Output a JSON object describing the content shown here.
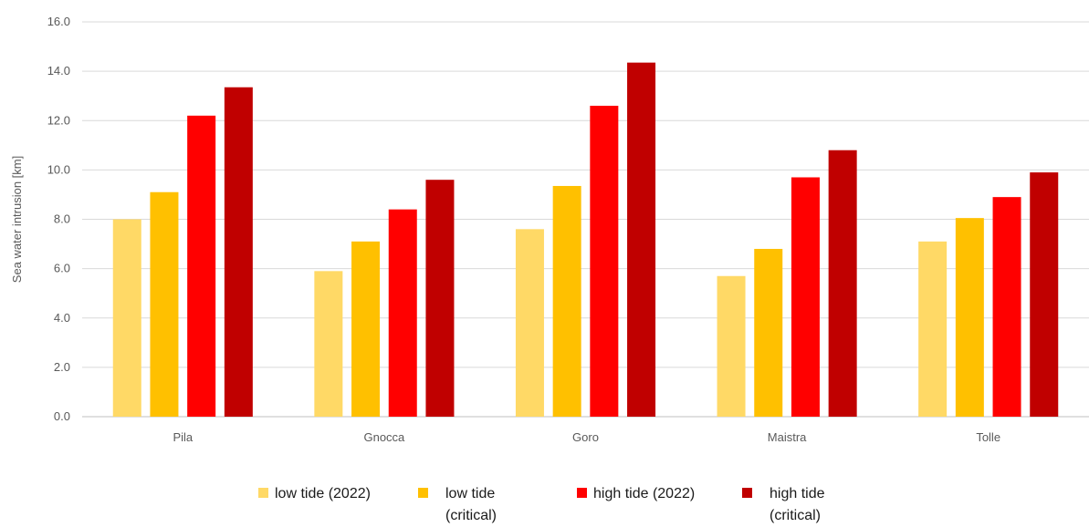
{
  "chart_data": {
    "type": "bar",
    "title": "",
    "xlabel": "",
    "ylabel": "Sea water intrusion [km]",
    "ylim": [
      0,
      16
    ],
    "yticks": [
      "0.0",
      "2.0",
      "4.0",
      "6.0",
      "8.0",
      "10.0",
      "12.0",
      "14.0",
      "16.0"
    ],
    "grid": true,
    "legend_position": "bottom",
    "categories": [
      "Pila",
      "Gnocca",
      "Goro",
      "Maistra",
      "Tolle"
    ],
    "series": [
      {
        "name": "low tide (2022)",
        "color": "#FFD966",
        "values": [
          8.0,
          5.9,
          7.6,
          5.7,
          7.1
        ]
      },
      {
        "name": "low tide\n(critical)",
        "color": "#FFC000",
        "values": [
          9.1,
          7.1,
          9.35,
          6.8,
          8.05
        ]
      },
      {
        "name": "high tide (2022)",
        "color": "#FF0000",
        "values": [
          12.2,
          8.4,
          12.6,
          9.7,
          8.9
        ]
      },
      {
        "name": "high tide\n(critical)",
        "color": "#C00000",
        "values": [
          13.35,
          9.6,
          14.35,
          10.8,
          9.9
        ]
      }
    ]
  }
}
